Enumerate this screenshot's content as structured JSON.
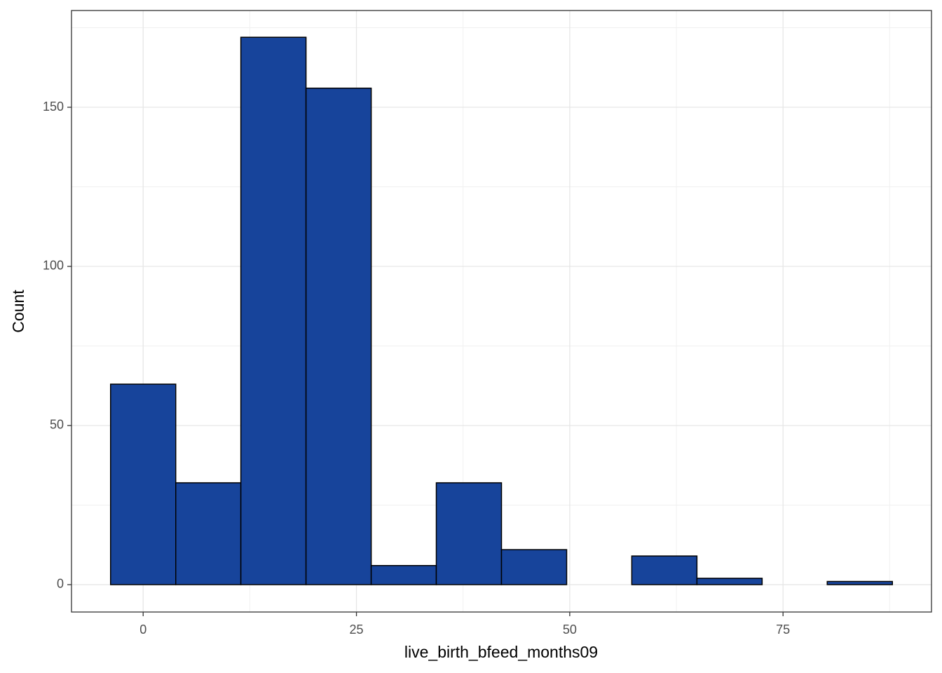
{
  "chart_data": {
    "type": "histogram",
    "x_label": "live_birth_bfeed_months09",
    "y_label": "Count",
    "bins": [
      -3.82,
      3.82,
      11.45,
      19.09,
      26.73,
      34.36,
      42,
      49.64,
      57.27,
      64.91,
      72.55,
      80.18,
      87.82
    ],
    "values": [
      63,
      32,
      172,
      156,
      6,
      32,
      11,
      0,
      9,
      2,
      0,
      1
    ],
    "color": "#17449b",
    "edge_color": "#000000",
    "xlim": [
      -8.4,
      92.4
    ],
    "ylim": [
      -8.6,
      180.4
    ],
    "xticks": [
      0,
      25,
      50,
      75
    ],
    "yticks": [
      0,
      50,
      100,
      150
    ],
    "x_minor_grid": [
      12.5,
      37.5,
      62.5,
      87.5
    ],
    "y_minor_grid": [
      25,
      75,
      125,
      175
    ],
    "grid": true
  }
}
